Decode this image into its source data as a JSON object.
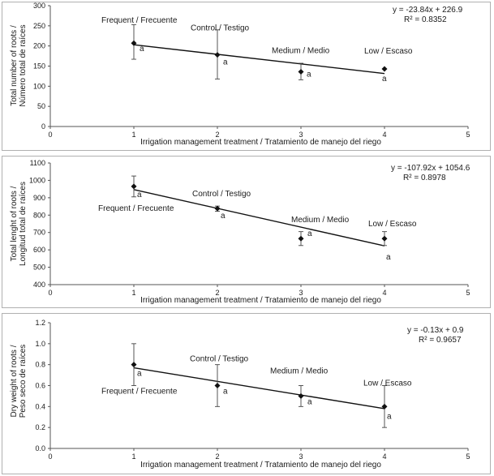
{
  "chart_data": [
    {
      "type": "scatter",
      "xlabel": "Irrigation management treatment / Tratamiento de manejo del riego",
      "ylabel_lines": [
        "Total number of roots /",
        "Número total de raíces"
      ],
      "xlim": [
        0,
        5
      ],
      "ylim": [
        0,
        300
      ],
      "xticks": [
        0,
        1,
        2,
        3,
        4,
        5
      ],
      "yticks": [
        0,
        50,
        100,
        150,
        200,
        250,
        300
      ],
      "points": [
        {
          "x": 1,
          "y": 207,
          "err_hi": 253,
          "err_lo": 167,
          "label": "Frequent / Frecuente",
          "sig": "a"
        },
        {
          "x": 2,
          "y": 178,
          "err_hi": 240,
          "err_lo": 118,
          "label": "Control / Testigo",
          "sig": "a"
        },
        {
          "x": 3,
          "y": 136,
          "err_hi": 157,
          "err_lo": 116,
          "label": "Medium / Medio",
          "sig": "a"
        },
        {
          "x": 4,
          "y": 143,
          "err_hi": null,
          "err_lo": null,
          "label": "Low / Escaso",
          "sig": "a"
        }
      ],
      "trendline": {
        "slope": -23.84,
        "intercept": 226.9,
        "x_from": 1,
        "x_to": 4
      },
      "equation": "y = -23.84x + 226.9",
      "r2": "R² = 0.8352"
    },
    {
      "type": "scatter",
      "xlabel": "Irrigation management treatment / Tratamiento de manejo del riego",
      "ylabel_lines": [
        "Total lenght of roots /",
        "Longitud total de raíces"
      ],
      "xlim": [
        0,
        5
      ],
      "ylim": [
        400,
        1100
      ],
      "xticks": [
        0,
        1,
        2,
        3,
        4,
        5
      ],
      "yticks": [
        400,
        500,
        600,
        700,
        800,
        900,
        1000,
        1100
      ],
      "points": [
        {
          "x": 1,
          "y": 965,
          "err_hi": 1025,
          "err_lo": 905,
          "label": "Frequent / Frecuente",
          "sig": "a"
        },
        {
          "x": 2,
          "y": 838,
          "err_hi": 852,
          "err_lo": 822,
          "label": "Control / Testigo",
          "sig": "a"
        },
        {
          "x": 3,
          "y": 665,
          "err_hi": 705,
          "err_lo": 625,
          "label": "Medium / Medio",
          "sig": "a"
        },
        {
          "x": 4,
          "y": 665,
          "err_hi": 705,
          "err_lo": 625,
          "label": "Low / Escaso",
          "sig": "a"
        }
      ],
      "trendline": {
        "slope": -107.92,
        "intercept": 1054.6,
        "x_from": 1,
        "x_to": 4
      },
      "equation": "y = -107.92x + 1054.6",
      "r2": "R² = 0.8978"
    },
    {
      "type": "scatter",
      "xlabel": "Irrigation management treatment / Tratamiento de manejo del riego",
      "ylabel_lines": [
        "Dry weight of roots /",
        "Peso seco de raíces"
      ],
      "xlim": [
        0,
        5
      ],
      "ylim": [
        0,
        1.2
      ],
      "xticks": [
        0,
        1,
        2,
        3,
        4,
        5
      ],
      "yticks": [
        0.0,
        0.2,
        0.4,
        0.6,
        0.8,
        1.0,
        1.2
      ],
      "ytick_labels": [
        "0.0",
        "0.2",
        "0.4",
        "0.6",
        "0.8",
        "1.0",
        "1.2"
      ],
      "points": [
        {
          "x": 1,
          "y": 0.8,
          "err_hi": 1.0,
          "err_lo": 0.6,
          "label": "Frequent / Frecuente",
          "sig": "a"
        },
        {
          "x": 2,
          "y": 0.6,
          "err_hi": 0.8,
          "err_lo": 0.4,
          "label": "Control / Testigo",
          "sig": "a"
        },
        {
          "x": 3,
          "y": 0.5,
          "err_hi": 0.6,
          "err_lo": 0.4,
          "label": "Medium / Medio",
          "sig": "a"
        },
        {
          "x": 4,
          "y": 0.4,
          "err_hi": 0.6,
          "err_lo": 0.2,
          "label": "Low / Escaso",
          "sig": "a"
        }
      ],
      "trendline": {
        "slope": -0.13,
        "intercept": 0.9,
        "x_from": 1,
        "x_to": 4
      },
      "equation": "y = -0.13x + 0.9",
      "r2": "R² = 0.9657"
    }
  ]
}
